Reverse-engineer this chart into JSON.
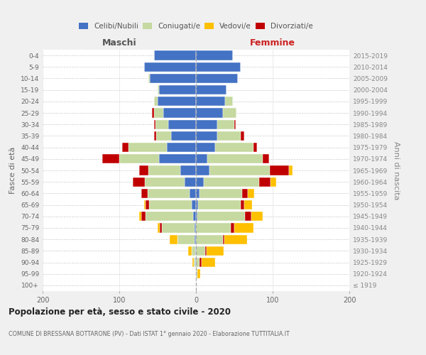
{
  "age_groups": [
    "100+",
    "95-99",
    "90-94",
    "85-89",
    "80-84",
    "75-79",
    "70-74",
    "65-69",
    "60-64",
    "55-59",
    "50-54",
    "45-49",
    "40-44",
    "35-39",
    "30-34",
    "25-29",
    "20-24",
    "15-19",
    "10-14",
    "5-9",
    "0-4"
  ],
  "birth_years": [
    "≤ 1919",
    "1920-1924",
    "1925-1929",
    "1930-1934",
    "1935-1939",
    "1940-1944",
    "1945-1949",
    "1950-1954",
    "1955-1959",
    "1960-1964",
    "1965-1969",
    "1970-1974",
    "1975-1979",
    "1980-1984",
    "1985-1989",
    "1990-1994",
    "1995-1999",
    "2000-2004",
    "2005-2009",
    "2010-2014",
    "2015-2019"
  ],
  "colors": {
    "celibi_nubili": "#4472c4",
    "coniugati": "#c5d9a0",
    "vedovi": "#ffc000",
    "divorziati": "#c00000"
  },
  "males": {
    "celibi": [
      0,
      0,
      1,
      1,
      2,
      2,
      4,
      6,
      8,
      15,
      20,
      48,
      38,
      32,
      36,
      43,
      50,
      48,
      60,
      68,
      55
    ],
    "coniugati": [
      0,
      0,
      2,
      5,
      22,
      42,
      62,
      55,
      55,
      52,
      42,
      52,
      50,
      20,
      17,
      12,
      5,
      2,
      2,
      0,
      0
    ],
    "vedovi": [
      0,
      0,
      2,
      4,
      10,
      3,
      3,
      2,
      0,
      0,
      0,
      0,
      0,
      0,
      0,
      0,
      0,
      0,
      0,
      0,
      0
    ],
    "divorziati": [
      0,
      0,
      0,
      0,
      0,
      3,
      5,
      5,
      8,
      15,
      12,
      22,
      8,
      3,
      2,
      2,
      0,
      0,
      0,
      0,
      0
    ]
  },
  "females": {
    "nubili": [
      0,
      0,
      0,
      0,
      0,
      0,
      2,
      3,
      5,
      10,
      18,
      15,
      25,
      28,
      28,
      35,
      38,
      40,
      55,
      58,
      48
    ],
    "coniugate": [
      0,
      2,
      5,
      12,
      35,
      45,
      62,
      55,
      55,
      72,
      78,
      72,
      50,
      30,
      22,
      18,
      10,
      0,
      0,
      0,
      0
    ],
    "vedove": [
      0,
      4,
      18,
      22,
      30,
      25,
      15,
      10,
      8,
      8,
      5,
      0,
      0,
      0,
      0,
      0,
      0,
      0,
      0,
      0,
      0
    ],
    "divorziate": [
      0,
      0,
      2,
      2,
      2,
      5,
      8,
      5,
      8,
      15,
      25,
      8,
      5,
      5,
      2,
      0,
      0,
      0,
      0,
      0,
      0
    ]
  },
  "title": "Popolazione per età, sesso e stato civile - 2020",
  "subtitle": "COMUNE DI BRESSANA BOTTARONE (PV) - Dati ISTAT 1° gennaio 2020 - Elaborazione TUTTITALIA.IT",
  "xlabel_left": "Maschi",
  "xlabel_right": "Femmine",
  "ylabel_left": "Fasce di età",
  "ylabel_right": "Anni di nascita",
  "xlim": 200,
  "bg_color": "#f0f0f0",
  "plot_bg_color": "#ffffff"
}
